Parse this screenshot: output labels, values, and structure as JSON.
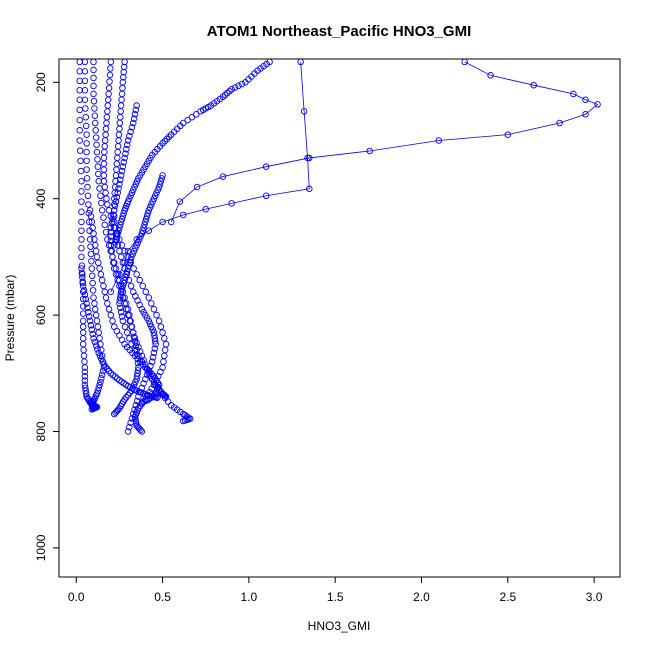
{
  "chart_data": {
    "type": "scatter",
    "title": "ATOM1 Northeast_Pacific HNO3_GMI",
    "xlabel": "HNO3_GMI",
    "ylabel": "Pressure (mbar)",
    "xlim": [
      -0.1,
      3.15
    ],
    "ylim": [
      1050,
      160
    ],
    "y_reversed": true,
    "grid": false,
    "legend": "none",
    "marker": "open-circle",
    "color": "#0000ff",
    "x_ticks": [
      0.0,
      0.5,
      1.0,
      1.5,
      2.0,
      2.5,
      3.0
    ],
    "x_tick_labels": [
      "0.0",
      "0.5",
      "1.0",
      "1.5",
      "2.0",
      "2.5",
      "3.0"
    ],
    "y_ticks": [
      200,
      400,
      600,
      800,
      1000
    ],
    "y_tick_labels": [
      "200",
      "400",
      "600",
      "800",
      "1000"
    ],
    "series": [
      {
        "connected": true,
        "x": [
          2.25,
          2.4,
          2.65,
          2.88,
          2.95,
          3.02,
          2.95,
          2.8,
          2.5,
          2.1,
          1.7,
          1.35,
          1.1,
          0.85,
          0.7,
          0.6,
          0.55
        ],
        "y": [
          165,
          188,
          205,
          220,
          230,
          238,
          255,
          270,
          290,
          300,
          318,
          330,
          345,
          362,
          380,
          405,
          440
        ]
      },
      {
        "connected": true,
        "x": [
          1.3,
          1.32,
          1.34,
          1.35,
          1.1,
          0.9,
          0.75,
          0.62,
          0.5,
          0.42,
          0.35,
          0.3,
          0.28,
          0.25,
          0.2
        ],
        "y": [
          165,
          250,
          330,
          383,
          395,
          408,
          418,
          428,
          440,
          455,
          470,
          490,
          510,
          530,
          560
        ]
      },
      {
        "connected": false,
        "x": [
          1.12,
          1.05,
          0.98,
          0.9,
          0.85,
          0.78,
          0.72,
          0.62,
          0.55,
          0.5,
          0.44,
          0.4,
          0.36,
          0.33,
          0.3,
          0.28,
          0.26,
          0.24,
          0.22
        ],
        "y": [
          165,
          180,
          200,
          212,
          225,
          240,
          250,
          270,
          290,
          305,
          325,
          345,
          365,
          385,
          405,
          420,
          440,
          460,
          480
        ]
      },
      {
        "connected": false,
        "x": [
          0.5,
          0.48,
          0.45,
          0.42,
          0.4,
          0.38,
          0.35,
          0.32,
          0.3,
          0.28,
          0.26,
          0.25,
          0.27,
          0.32,
          0.4,
          0.48,
          0.55,
          0.62,
          0.66,
          0.62
        ],
        "y": [
          360,
          380,
          400,
          420,
          440,
          460,
          480,
          500,
          520,
          540,
          560,
          580,
          610,
          650,
          690,
          730,
          755,
          770,
          778,
          782
        ]
      },
      {
        "connected": false,
        "x": [
          0.28,
          0.27,
          0.26,
          0.25,
          0.24,
          0.23,
          0.22,
          0.22,
          0.24,
          0.28,
          0.33,
          0.38,
          0.42,
          0.45,
          0.46,
          0.44,
          0.4,
          0.36,
          0.33,
          0.3
        ],
        "y": [
          165,
          200,
          240,
          280,
          320,
          360,
          400,
          440,
          480,
          520,
          560,
          590,
          610,
          630,
          650,
          680,
          710,
          740,
          770,
          800
        ]
      },
      {
        "connected": false,
        "x": [
          0.2,
          0.19,
          0.18,
          0.17,
          0.16,
          0.16,
          0.18,
          0.22,
          0.28,
          0.35,
          0.42,
          0.48,
          0.52,
          0.5,
          0.45,
          0.4,
          0.36,
          0.34,
          0.35,
          0.38
        ],
        "y": [
          165,
          210,
          250,
          290,
          330,
          370,
          410,
          450,
          490,
          530,
          570,
          610,
          650,
          690,
          720,
          745,
          760,
          775,
          790,
          800
        ]
      },
      {
        "connected": false,
        "x": [
          0.1,
          0.1,
          0.11,
          0.12,
          0.13,
          0.15,
          0.18,
          0.22,
          0.26,
          0.3,
          0.33,
          0.35,
          0.36,
          0.35,
          0.32,
          0.28,
          0.25,
          0.22
        ],
        "y": [
          165,
          220,
          270,
          320,
          370,
          420,
          470,
          510,
          550,
          590,
          630,
          660,
          690,
          710,
          730,
          745,
          760,
          770
        ]
      },
      {
        "connected": false,
        "x": [
          0.05,
          0.05,
          0.06,
          0.06,
          0.07,
          0.08,
          0.09,
          0.1,
          0.12,
          0.14,
          0.16,
          0.14,
          0.12,
          0.1,
          0.09,
          0.1
        ],
        "y": [
          165,
          230,
          290,
          350,
          410,
          470,
          520,
          570,
          610,
          650,
          690,
          715,
          735,
          748,
          755,
          760
        ]
      },
      {
        "connected": false,
        "x": [
          0.02,
          0.02,
          0.02,
          0.03,
          0.03,
          0.03,
          0.04,
          0.04,
          0.04,
          0.05,
          0.05,
          0.06,
          0.08,
          0.1,
          0.12,
          0.09
        ],
        "y": [
          165,
          230,
          300,
          370,
          440,
          500,
          560,
          610,
          650,
          690,
          720,
          740,
          750,
          755,
          758,
          762
        ]
      },
      {
        "connected": false,
        "x": [
          0.35,
          0.33,
          0.3,
          0.28,
          0.26,
          0.24,
          0.22,
          0.2,
          0.2,
          0.22,
          0.26,
          0.3,
          0.34,
          0.38,
          0.42,
          0.46,
          0.5,
          0.52
        ],
        "y": [
          240,
          270,
          300,
          330,
          360,
          390,
          420,
          450,
          480,
          520,
          560,
          600,
          640,
          670,
          700,
          720,
          735,
          740
        ]
      },
      {
        "connected": false,
        "x": [
          0.08,
          0.1,
          0.12,
          0.15,
          0.18,
          0.22,
          0.28,
          0.34,
          0.4,
          0.45,
          0.48,
          0.46,
          0.42,
          0.38
        ],
        "y": [
          420,
          460,
          500,
          540,
          580,
          620,
          650,
          670,
          690,
          705,
          720,
          735,
          745,
          750
        ]
      },
      {
        "connected": false,
        "x": [
          0.03,
          0.04,
          0.06,
          0.08,
          0.1,
          0.13,
          0.16,
          0.2,
          0.25,
          0.3,
          0.35,
          0.4,
          0.44,
          0.47
        ],
        "y": [
          520,
          550,
          580,
          610,
          640,
          665,
          685,
          700,
          712,
          722,
          730,
          736,
          740,
          742
        ]
      }
    ]
  }
}
